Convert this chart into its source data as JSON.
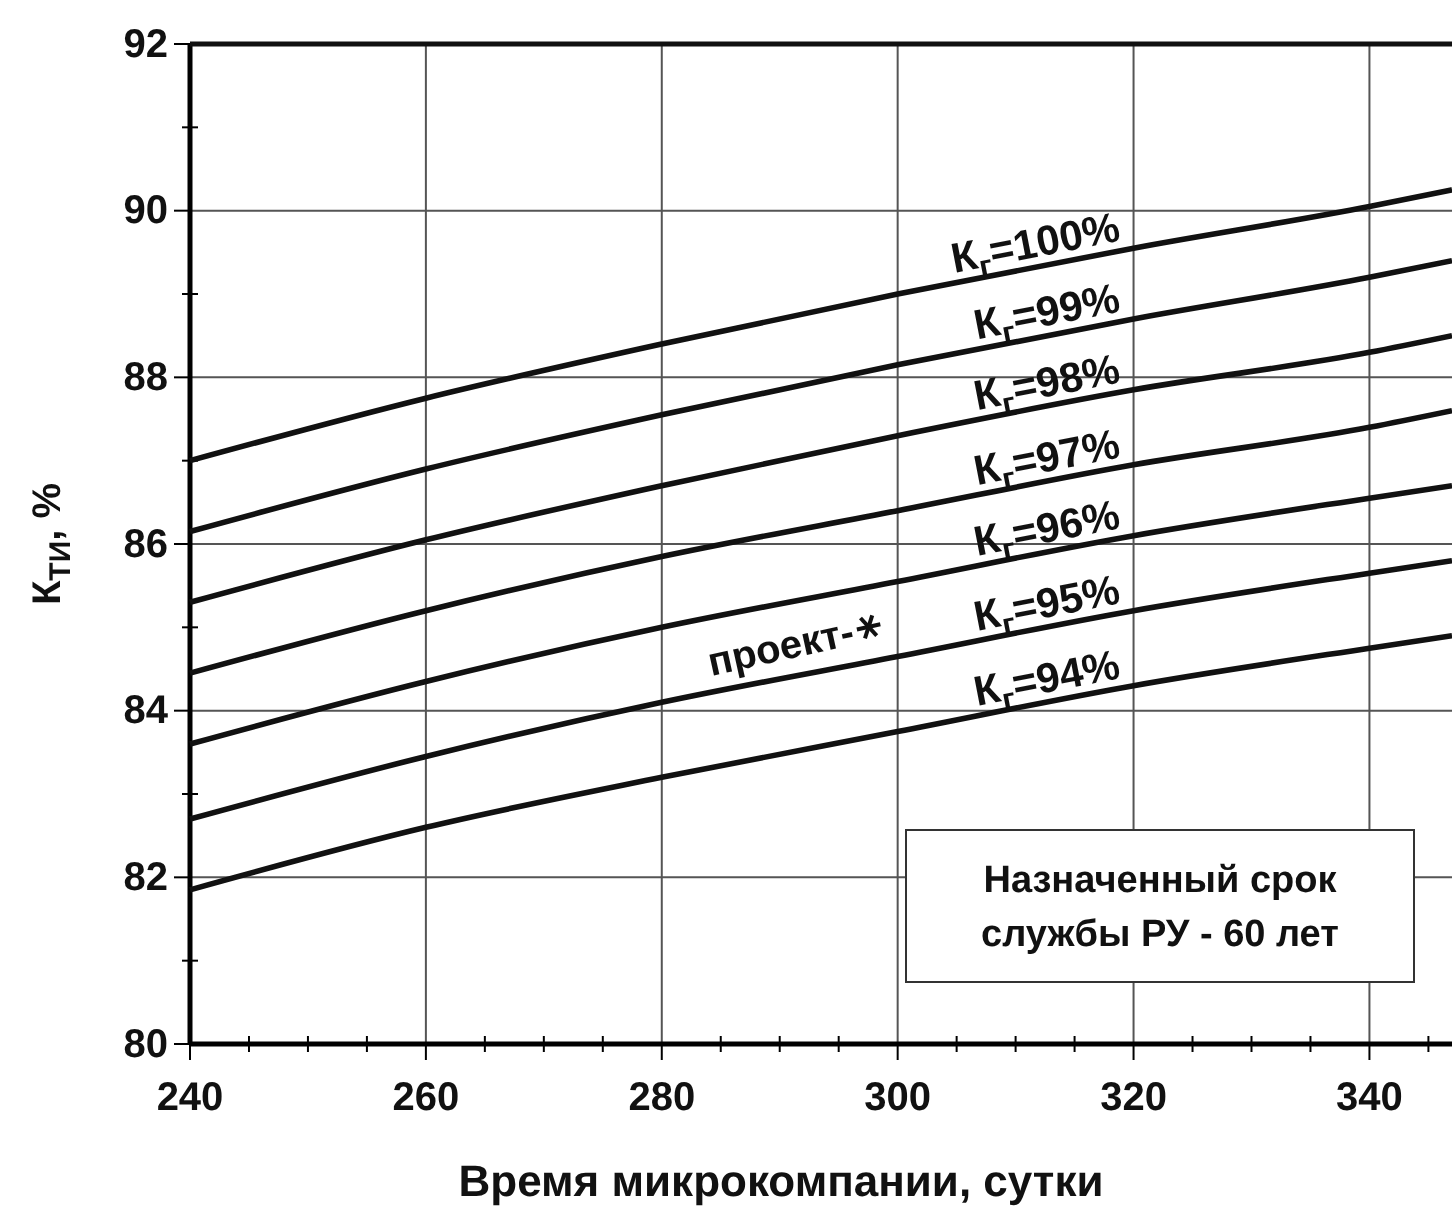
{
  "chart_data": {
    "type": "line",
    "xlabel": "Время микрокомпании, сутки",
    "ylabel": "К$_{ТИ}$, %",
    "x": [
      240,
      260,
      280,
      300,
      320,
      340,
      347
    ],
    "xlim": [
      240,
      347
    ],
    "xticks": [
      240,
      {
        "value": 245,
        "label": null
      },
      {
        "value": 250,
        "label": null
      },
      {
        "value": 255,
        "label": null
      },
      260,
      {
        "value": 265,
        "label": null
      },
      {
        "value": 270,
        "label": null
      },
      {
        "value": 275,
        "label": null
      },
      280,
      {
        "value": 285,
        "label": null
      },
      {
        "value": 290,
        "label": null
      },
      {
        "value": 295,
        "label": null
      },
      300,
      {
        "value": 305,
        "label": null
      },
      {
        "value": 310,
        "label": null
      },
      {
        "value": 315,
        "label": null
      },
      320,
      {
        "value": 325,
        "label": null
      },
      {
        "value": 330,
        "label": null
      },
      {
        "value": 335,
        "label": null
      },
      340,
      {
        "value": 345,
        "label": null
      }
    ],
    "ylim": [
      80,
      92
    ],
    "yticks": [
      80,
      {
        "value": 81,
        "label": null
      },
      82,
      {
        "value": 83,
        "label": null
      },
      84,
      {
        "value": 85,
        "label": null
      },
      86,
      {
        "value": 87,
        "label": null
      },
      88,
      {
        "value": 89,
        "label": null
      },
      90,
      {
        "value": 91,
        "label": null
      },
      92
    ],
    "grid": true,
    "marker": "none",
    "line_style": "solid",
    "series": [
      {
        "name": "К$_{г}$=100%",
        "color": "#111111",
        "values": [
          87.0,
          87.75,
          88.4,
          89.0,
          89.55,
          90.05,
          90.25
        ]
      },
      {
        "name": "К$_{г}$=99%",
        "color": "#111111",
        "values": [
          86.15,
          86.9,
          87.55,
          88.15,
          88.7,
          89.2,
          89.4
        ]
      },
      {
        "name": "К$_{г}$=98%",
        "color": "#111111",
        "values": [
          85.3,
          86.05,
          86.7,
          87.3,
          87.85,
          88.3,
          88.5
        ]
      },
      {
        "name": "К$_{г}$=97%",
        "color": "#111111",
        "values": [
          84.45,
          85.2,
          85.85,
          86.4,
          86.95,
          87.4,
          87.6
        ]
      },
      {
        "name": "К$_{г}$=96%",
        "color": "#111111",
        "values": [
          83.6,
          84.35,
          85.0,
          85.55,
          86.1,
          86.55,
          86.7
        ]
      },
      {
        "name": "К$_{г}$=95%",
        "color": "#111111",
        "values": [
          82.7,
          83.45,
          84.1,
          84.65,
          85.2,
          85.65,
          85.8
        ]
      },
      {
        "name": "К$_{г}$=94%",
        "color": "#111111",
        "values": [
          81.85,
          82.6,
          83.2,
          83.75,
          84.3,
          84.75,
          84.9
        ]
      }
    ],
    "annotations": [
      "проект-",
      "Назначенный срок\nслужбы РУ - 60 лет"
    ]
  }
}
